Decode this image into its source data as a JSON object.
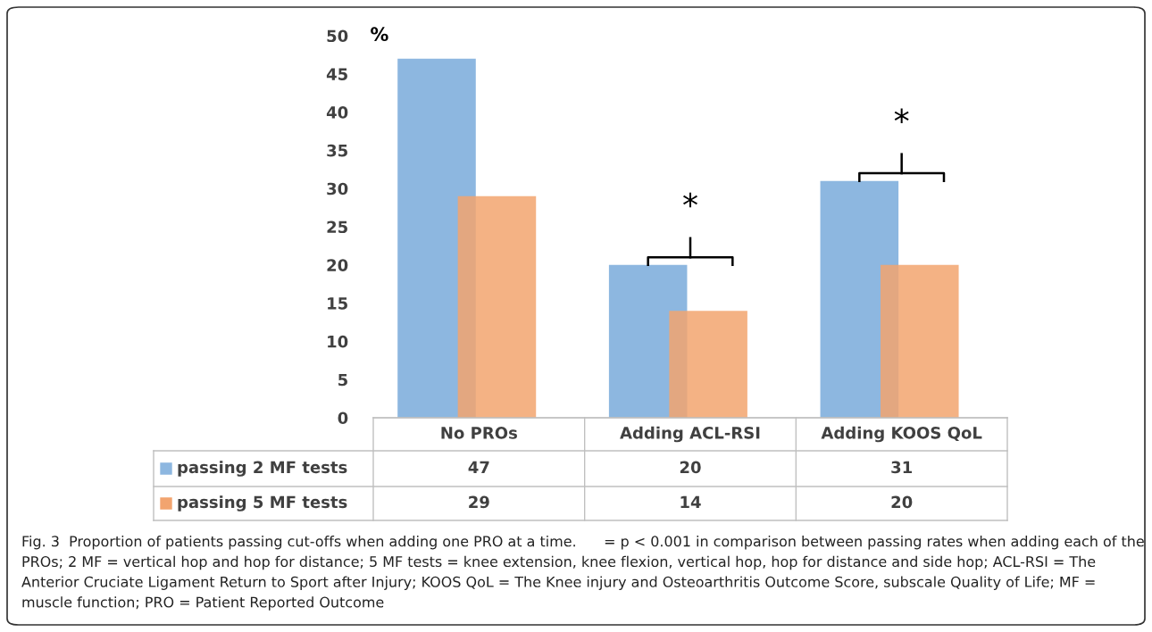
{
  "chart_data": {
    "type": "bar",
    "ylabel": "%",
    "categories": [
      "No PROs",
      "Adding ACL-RSI",
      "Adding KOOS QoL"
    ],
    "series": [
      {
        "name": "passing 2 MF tests",
        "color": "#8db7e0",
        "values": [
          47,
          20,
          31
        ]
      },
      {
        "name": "passing 5 MF tests",
        "color": "#f2a46f",
        "values": [
          29,
          14,
          20
        ]
      }
    ],
    "ylim": [
      0,
      50
    ],
    "yticks": [
      0,
      5,
      10,
      15,
      20,
      25,
      30,
      35,
      40,
      45,
      50
    ],
    "data_labels": true,
    "grid": false,
    "legend": "bottom left",
    "annotations": [
      {
        "text": "*",
        "x": "Adding ACL-RSI",
        "y": 20
      },
      {
        "text": "*",
        "x": "Adding KOOS QoL",
        "y": 31
      },
      "Fig. 3  Proportion of patients passing cut-offs when adding one PRO at a time.      = p < 0.001 in comparison between passing rates when adding each of the PROs; 2 MF = vertical hop and hop for distance; 5 MF tests = knee extension, knee flexion, vertical hop, hop for distance and side hop; ACL-RSI = The Anterior Cruciate Ligament Return to Sport after Injury; KOOS QoL = The Knee injury and Osteoarthritis Outcome Score, subscale Quality of Life; MF = muscle function; PRO = Patient Reported Outcome"
    ]
  }
}
